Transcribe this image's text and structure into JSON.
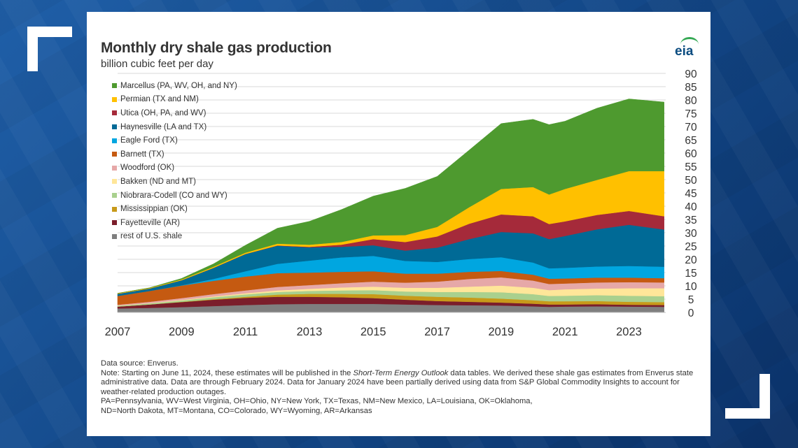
{
  "title": "Monthly dry shale gas production",
  "subtitle": "billion cubic feet per day",
  "logo": "eia",
  "notes": {
    "source": "Data source: Enverus.",
    "note_prefix": "Note: Starting on June 11, 2024, these estimates will be published in the ",
    "note_italic": "Short-Term Energy Outlook",
    "note_suffix": " data tables. We derived these shale gas estimates from Enverus state administrative data. Data are through February 2024. Data for January 2024 have been partially derived using data from S&P Global Commodity Insights to account for weather-related production outages.",
    "abbrev1": "PA=Pennsylvania, WV=West Virginia, OH=Ohio, NY=New York, TX=Texas, NM=New Mexico, LA=Louisiana, OK=Oklahoma,",
    "abbrev2": "ND=North Dakota, MT=Montana, CO=Colorado, WY=Wyoming, AR=Arkansas"
  },
  "chart_data": {
    "type": "area",
    "stacked": true,
    "title": "Monthly dry shale gas production",
    "ylabel": "billion cubic feet per day",
    "ylim": [
      0,
      90
    ],
    "yticks": [
      0,
      5,
      10,
      15,
      20,
      25,
      30,
      35,
      40,
      45,
      50,
      55,
      60,
      65,
      70,
      75,
      80,
      85,
      90
    ],
    "xlim": [
      2007,
      2024.15
    ],
    "xticks": [
      "2007",
      "2009",
      "2011",
      "2013",
      "2015",
      "2017",
      "2019",
      "2021",
      "2023"
    ],
    "grid": "horizontal",
    "legend_position": "top-left",
    "x": [
      2007,
      2008,
      2009,
      2010,
      2011,
      2012,
      2013,
      2014,
      2015,
      2016,
      2017,
      2018,
      2019,
      2020,
      2020.5,
      2021,
      2022,
      2023,
      2024.1
    ],
    "series": [
      {
        "name": "rest of U.S. shale",
        "color": "#7f7f7f",
        "values": [
          1.5,
          1.7,
          2.0,
          2.4,
          2.8,
          3.1,
          3.2,
          3.2,
          3.2,
          3.0,
          2.8,
          2.7,
          2.6,
          2.3,
          2.1,
          2.2,
          2.3,
          2.2,
          2.1
        ]
      },
      {
        "name": "Fayetteville (AR)",
        "color": "#7b1e2b",
        "values": [
          0.7,
          1.3,
          1.9,
          2.4,
          2.7,
          2.8,
          2.7,
          2.5,
          2.2,
          1.8,
          1.5,
          1.3,
          1.1,
          1.0,
          0.9,
          0.8,
          0.8,
          0.7,
          0.7
        ]
      },
      {
        "name": "Mississippian (OK)",
        "color": "#c89a1a",
        "values": [
          0.0,
          0.0,
          0.1,
          0.2,
          0.4,
          0.8,
          1.1,
          1.3,
          1.5,
          1.5,
          1.6,
          1.6,
          1.5,
          1.3,
          1.2,
          1.2,
          1.2,
          1.1,
          1.1
        ]
      },
      {
        "name": "Niobrara-Codell (CO and WY)",
        "color": "#a9d08e",
        "values": [
          0.3,
          0.4,
          0.5,
          0.7,
          0.9,
          1.0,
          1.1,
          1.3,
          1.5,
          1.6,
          1.8,
          2.1,
          2.4,
          2.3,
          2.0,
          2.1,
          2.2,
          2.3,
          2.2
        ]
      },
      {
        "name": "Bakken (ND and MT)",
        "color": "#ffe699",
        "values": [
          0.1,
          0.1,
          0.2,
          0.3,
          0.4,
          0.6,
          0.8,
          1.1,
          1.3,
          1.4,
          1.6,
          2.0,
          2.5,
          2.4,
          2.2,
          2.4,
          2.5,
          2.8,
          3.0
        ]
      },
      {
        "name": "Woodford (OK)",
        "color": "#e6a8a8",
        "values": [
          0.3,
          0.5,
          0.7,
          0.9,
          1.1,
          1.3,
          1.4,
          1.6,
          1.9,
          1.9,
          2.3,
          2.9,
          3.1,
          2.7,
          2.3,
          2.2,
          2.3,
          2.3,
          2.2
        ]
      },
      {
        "name": "Barnett (TX)",
        "color": "#c55a11",
        "values": [
          3.3,
          4.1,
          4.7,
          5.0,
          5.2,
          5.2,
          4.7,
          4.3,
          3.9,
          3.4,
          3.0,
          2.7,
          2.4,
          2.2,
          2.0,
          1.9,
          1.8,
          1.7,
          1.6
        ]
      },
      {
        "name": "Eagle Ford (TX)",
        "color": "#00a6e0",
        "values": [
          0.0,
          0.0,
          0.1,
          0.7,
          2.0,
          3.5,
          4.5,
          5.4,
          5.8,
          4.8,
          4.4,
          4.8,
          5.2,
          4.6,
          3.9,
          4.0,
          4.2,
          4.4,
          4.3
        ]
      },
      {
        "name": "Haynesville (LA and TX)",
        "color": "#006a96",
        "values": [
          0.8,
          0.9,
          1.9,
          4.2,
          6.5,
          6.8,
          5.0,
          4.0,
          4.0,
          3.9,
          5.4,
          7.5,
          9.5,
          11.0,
          11.0,
          12.0,
          14.0,
          15.5,
          14.0
        ]
      },
      {
        "name": "Utica (OH, PA, and WV)",
        "color": "#a52a3a",
        "values": [
          0.0,
          0.0,
          0.0,
          0.0,
          0.0,
          0.1,
          0.2,
          0.8,
          2.3,
          3.2,
          4.2,
          5.8,
          6.6,
          6.4,
          5.7,
          5.5,
          5.4,
          5.2,
          5.0
        ]
      },
      {
        "name": "Permian (TX and NM)",
        "color": "#ffc000",
        "values": [
          0.2,
          0.2,
          0.3,
          0.4,
          0.5,
          0.7,
          0.8,
          1.0,
          1.4,
          2.6,
          3.6,
          6.2,
          9.6,
          11.0,
          11.1,
          12.2,
          13.2,
          15.0,
          17.0
        ]
      },
      {
        "name": "Marcellus (PA, WV, OH, and NY)",
        "color": "#4e9a2f",
        "values": [
          0.0,
          0.1,
          0.4,
          1.1,
          2.8,
          5.8,
          8.8,
          12.2,
          14.8,
          17.6,
          19.0,
          21.5,
          24.6,
          25.5,
          26.3,
          25.5,
          27.0,
          27.2,
          26.0
        ]
      }
    ]
  }
}
